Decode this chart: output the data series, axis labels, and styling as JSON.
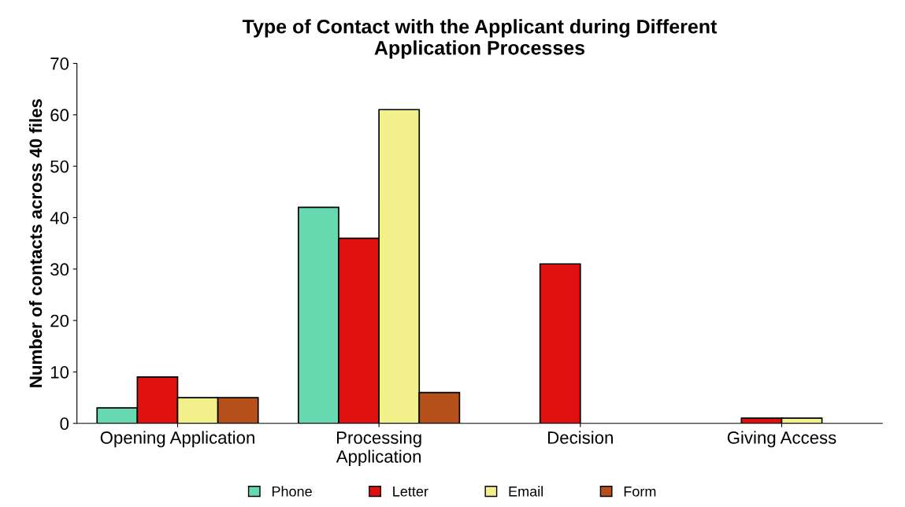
{
  "chart_data": {
    "type": "bar",
    "title": "Type of Contact with the Applicant during Different\nApplication Processes",
    "ylabel": "Number of contacts across 40 files",
    "categories": [
      "Opening Application",
      "Processing\nApplication",
      "Decision",
      "Giving Access"
    ],
    "series": [
      {
        "name": "Phone",
        "color": "#66d9b0",
        "values": [
          3,
          42,
          null,
          null
        ]
      },
      {
        "name": "Letter",
        "color": "#e01010",
        "values": [
          9,
          36,
          31,
          1
        ]
      },
      {
        "name": "Email",
        "color": "#f2f08a",
        "values": [
          5,
          61,
          null,
          1
        ]
      },
      {
        "name": "Form",
        "color": "#b5501a",
        "values": [
          5,
          6,
          null,
          null
        ]
      }
    ],
    "ylim": [
      0,
      70
    ],
    "yticks": [
      0,
      10,
      20,
      30,
      40,
      50,
      60,
      70
    ],
    "grid": false,
    "legend": "bottom"
  }
}
